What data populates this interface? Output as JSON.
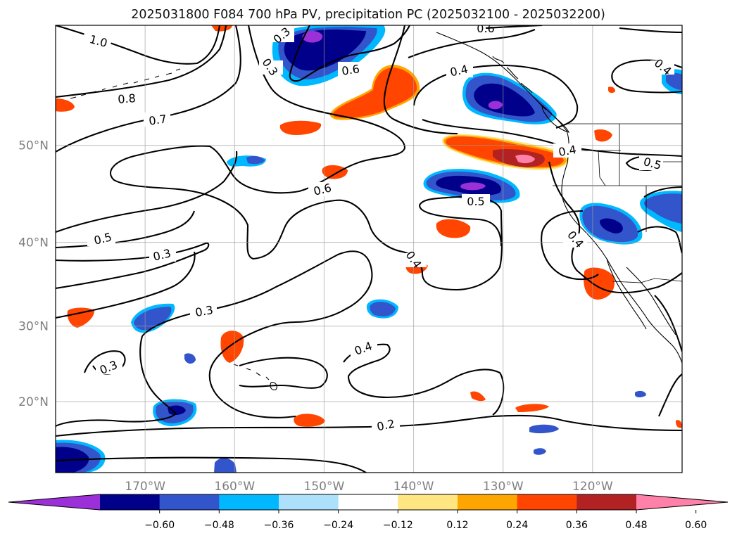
{
  "title": "2025031800 F084 700 hPa PV, precipitation PC (2025032100 - 2025032200)",
  "map": {
    "lon_ticks": [
      {
        "lon": -170,
        "label": "170°W"
      },
      {
        "lon": -160,
        "label": "160°W"
      },
      {
        "lon": -150,
        "label": "150°W"
      },
      {
        "lon": -140,
        "label": "140°W"
      },
      {
        "lon": -130,
        "label": "130°W"
      },
      {
        "lon": -120,
        "label": "120°W"
      }
    ],
    "lat_ticks": [
      {
        "lat": 20,
        "label": "20°N"
      },
      {
        "lat": 30,
        "label": "30°N"
      },
      {
        "lat": 40,
        "label": "40°N"
      },
      {
        "lat": 50,
        "label": "50°N"
      }
    ],
    "extent": {
      "lon_min": -180,
      "lon_max": -110,
      "lat_min": 10,
      "lat_max": 60
    },
    "gridlines": true
  },
  "contour_labels": [
    "1.0",
    "0.8",
    "0.7",
    "0.6",
    "0.6",
    "0.6",
    "0.5",
    "0.5",
    "0.5",
    "0.4",
    "0.4",
    "0.4",
    "0.4",
    "0.4",
    "0.4",
    "0.3",
    "0.3",
    "0.3",
    "0.3",
    "0.3",
    "0.2"
  ],
  "colorbar": {
    "colors": [
      "#9b30d9",
      "#00008b",
      "#3355cc",
      "#00b8ff",
      "#ade0fa",
      "#ffffff",
      "#ffe680",
      "#ffa500",
      "#ff4500",
      "#b22222",
      "#ff80a8"
    ],
    "tick_labels": [
      "−0.60",
      "−0.48",
      "−0.36",
      "−0.24",
      "−0.12",
      "0.12",
      "0.24",
      "0.36",
      "0.48",
      "0.60"
    ]
  }
}
